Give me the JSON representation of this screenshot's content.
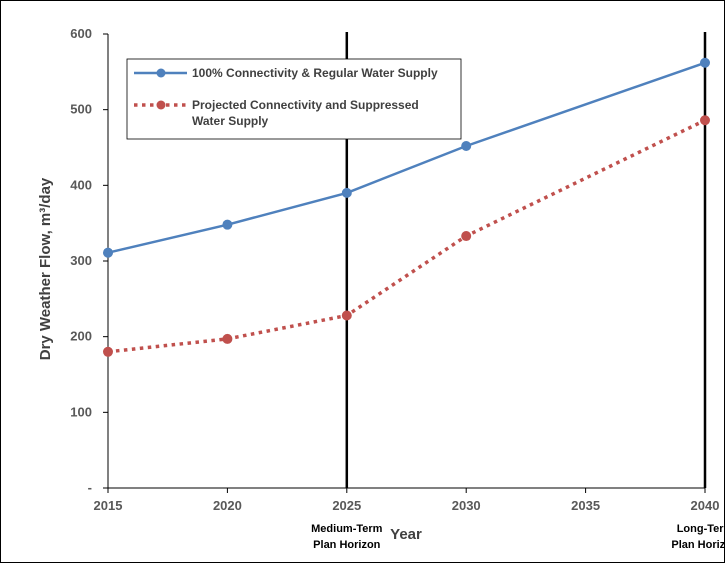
{
  "chart_data": {
    "type": "line",
    "title": "",
    "xlabel": "Year",
    "ylabel": "Dry Weather Flow, m³/day",
    "x": [
      2015,
      2020,
      2025,
      2030,
      2040
    ],
    "xticks": [
      2015,
      2020,
      2025,
      2030,
      2035,
      2040
    ],
    "xlim": [
      2015,
      2040
    ],
    "ylim": [
      0,
      600
    ],
    "yticks": [
      0,
      100,
      200,
      300,
      400,
      500,
      600
    ],
    "ytick_labels": [
      "-",
      "100",
      "200",
      "300",
      "400",
      "500",
      "600"
    ],
    "grid": false,
    "legend_position": "top-left",
    "series": [
      {
        "name": "100% Connectivity & Regular Water Supply",
        "values": [
          311,
          348,
          390,
          452,
          562
        ],
        "color": "#4f81bd",
        "style": "solid"
      },
      {
        "name": "Projected Connectivity and Suppressed Water Supply",
        "values": [
          180,
          197,
          228,
          333,
          486
        ],
        "color": "#c0504d",
        "style": "dotted"
      }
    ],
    "annotations": [
      {
        "x": 2025,
        "text": [
          "Medium-Term",
          "Plan Horizon"
        ]
      },
      {
        "x": 2040,
        "text": [
          "Long-Term",
          "Plan Horizon"
        ]
      }
    ]
  }
}
